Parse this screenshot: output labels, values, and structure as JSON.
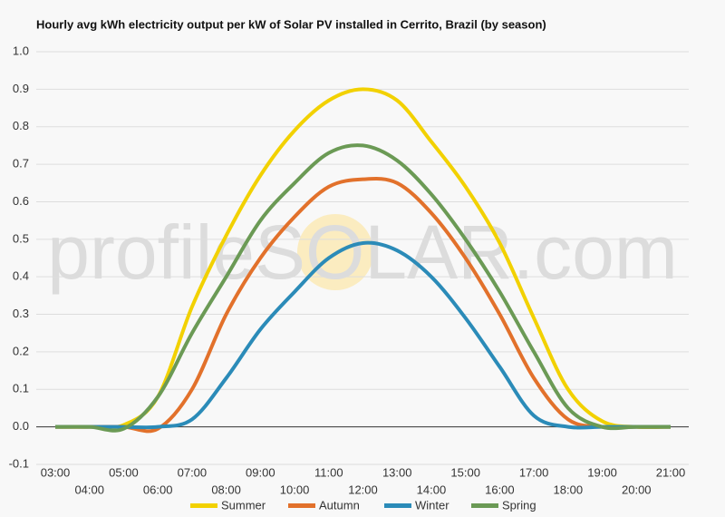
{
  "chart_data": {
    "type": "line",
    "title": "Hourly avg kWh electricity output per kW of Solar PV installed in Cerrito, Brazil (by season)",
    "watermark": "profileSOLAR.com",
    "categories": [
      "03:00",
      "04:00",
      "05:00",
      "06:00",
      "07:00",
      "08:00",
      "09:00",
      "10:00",
      "11:00",
      "12:00",
      "13:00",
      "14:00",
      "15:00",
      "16:00",
      "17:00",
      "18:00",
      "19:00",
      "20:00",
      "21:00"
    ],
    "series": [
      {
        "name": "Summer",
        "color": "#f2d100",
        "values": [
          0,
          0,
          0.005,
          0.08,
          0.32,
          0.51,
          0.67,
          0.79,
          0.87,
          0.9,
          0.87,
          0.76,
          0.64,
          0.49,
          0.29,
          0.1,
          0.015,
          0,
          0
        ]
      },
      {
        "name": "Autumn",
        "color": "#e2712b",
        "values": [
          0,
          0,
          0,
          -0.005,
          0.1,
          0.3,
          0.45,
          0.56,
          0.64,
          0.66,
          0.65,
          0.57,
          0.45,
          0.3,
          0.13,
          0.02,
          0,
          0,
          0
        ]
      },
      {
        "name": "Winter",
        "color": "#2b8bb8",
        "values": [
          0,
          0,
          0,
          0,
          0.02,
          0.13,
          0.26,
          0.36,
          0.45,
          0.49,
          0.47,
          0.4,
          0.29,
          0.16,
          0.03,
          0,
          0,
          0,
          0
        ]
      },
      {
        "name": "Spring",
        "color": "#6b9a55",
        "values": [
          0,
          0,
          -0.005,
          0.08,
          0.25,
          0.4,
          0.55,
          0.65,
          0.73,
          0.75,
          0.71,
          0.62,
          0.5,
          0.36,
          0.2,
          0.05,
          0,
          0,
          0
        ]
      }
    ],
    "ylim": [
      -0.1,
      1.0
    ],
    "yticks": [
      -0.1,
      {
        "value": 0,
        "label": "0.0"
      },
      0.1,
      0.2,
      0.3,
      0.4,
      0.5,
      0.6,
      0.7,
      0.8,
      0.9,
      {
        "value": 1.0,
        "label": "1.0"
      }
    ],
    "grid": true
  }
}
